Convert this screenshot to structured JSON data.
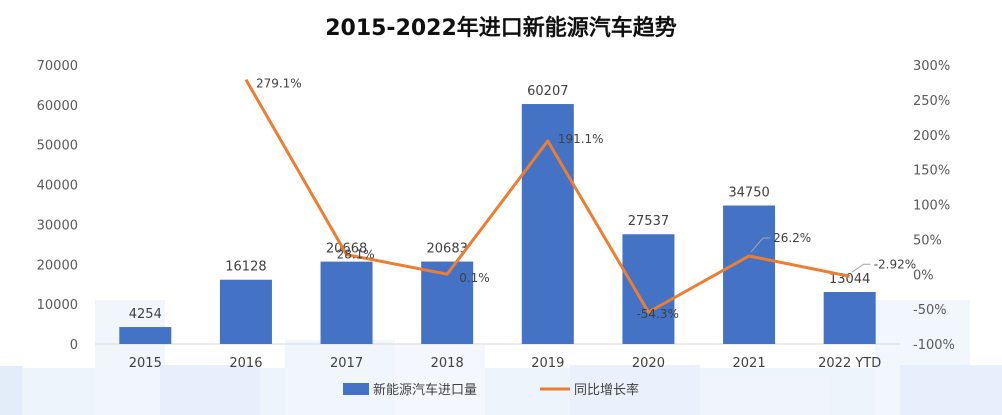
{
  "chart_data": {
    "type": "bar",
    "title": "2015-2022年进口新能源汽车趋势",
    "categories": [
      "2015",
      "2016",
      "2017",
      "2018",
      "2019",
      "2020",
      "2021",
      "2022 YTD"
    ],
    "series": [
      {
        "name": "新能源汽车进口量",
        "type": "bar",
        "axis": "left",
        "color": "#4472C4",
        "values": [
          4254,
          16128,
          20668,
          20683,
          60207,
          27537,
          34750,
          13044
        ],
        "labels": [
          "4254",
          "16128",
          "20668",
          "20683",
          "60207",
          "27537",
          "34750",
          "13044"
        ]
      },
      {
        "name": "同比增长率",
        "type": "line",
        "axis": "right",
        "color": "#ED7D31",
        "values": [
          null,
          279.1,
          28.1,
          0.1,
          191.1,
          -54.3,
          26.2,
          -2.92
        ],
        "labels": [
          "",
          "279.1%",
          "28.1%",
          "0.1%",
          "191.1%",
          "-54.3%",
          "26.2%",
          "-2.92%"
        ]
      }
    ],
    "y_left": {
      "min": 0,
      "max": 70000,
      "ticks": [
        "0",
        "10000",
        "20000",
        "30000",
        "40000",
        "50000",
        "60000",
        "70000"
      ]
    },
    "y_right": {
      "min": -100,
      "max": 300,
      "ticks": [
        "-100%",
        "-50%",
        "0%",
        "50%",
        "100%",
        "150%",
        "200%",
        "250%",
        "300%"
      ]
    },
    "grid": false,
    "legend": "bottom"
  }
}
